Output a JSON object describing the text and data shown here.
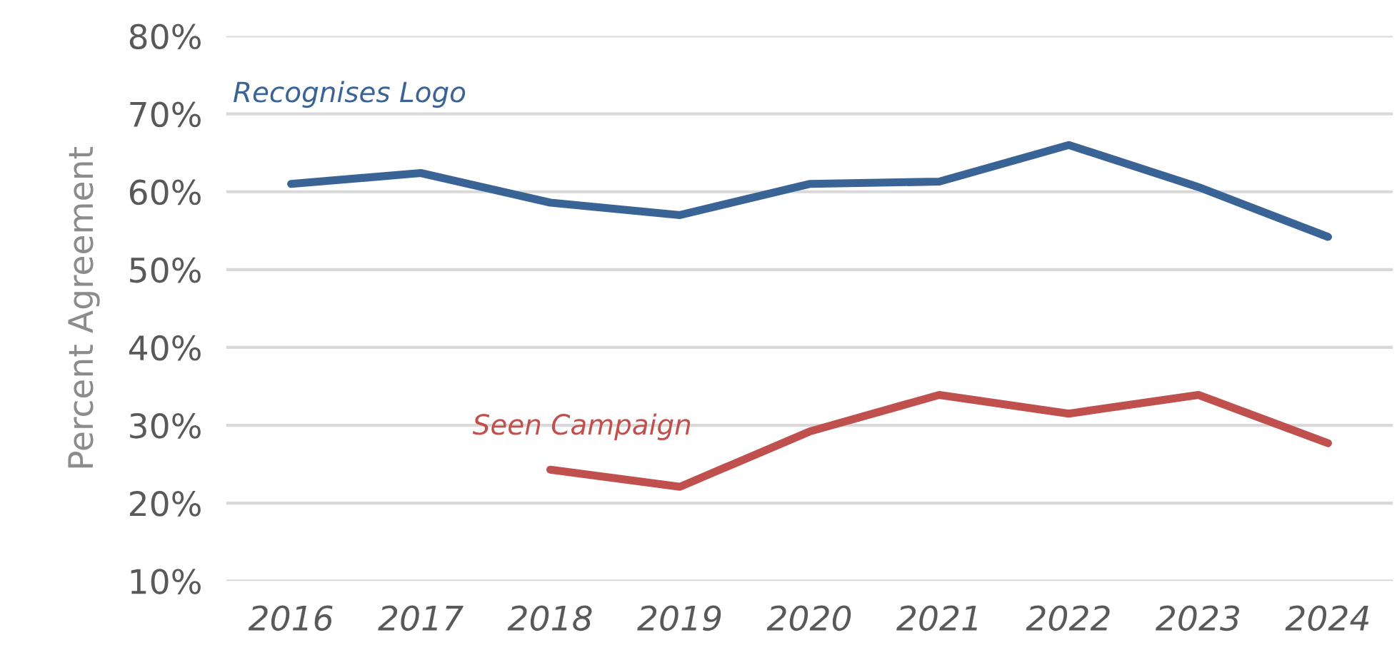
{
  "chart_data": {
    "type": "line",
    "ylabel": "Percent Agreement",
    "categories": [
      "2016",
      "2017",
      "2018",
      "2019",
      "2020",
      "2021",
      "2022",
      "2023",
      "2024"
    ],
    "series": [
      {
        "name": "Recognises Logo",
        "color": "#3a6496",
        "values": [
          61.0,
          62.4,
          58.6,
          57.0,
          61.0,
          61.3,
          66.0,
          60.6,
          54.2
        ]
      },
      {
        "name": "Seen Campaign",
        "color": "#c0504d",
        "values": [
          null,
          null,
          24.3,
          22.1,
          29.2,
          33.9,
          31.5,
          33.9,
          27.7
        ]
      }
    ],
    "ylim": [
      10,
      80
    ],
    "yticks": [
      {
        "value": 10,
        "label": "10%"
      },
      {
        "value": 20,
        "label": "20%"
      },
      {
        "value": 30,
        "label": "30%"
      },
      {
        "value": 40,
        "label": "40%"
      },
      {
        "value": 50,
        "label": "50%"
      },
      {
        "value": 60,
        "label": "60%"
      },
      {
        "value": 70,
        "label": "70%"
      },
      {
        "value": 80,
        "label": "80%"
      }
    ],
    "grid": "y",
    "legend": false,
    "marker": "none",
    "line_style": "solid"
  }
}
